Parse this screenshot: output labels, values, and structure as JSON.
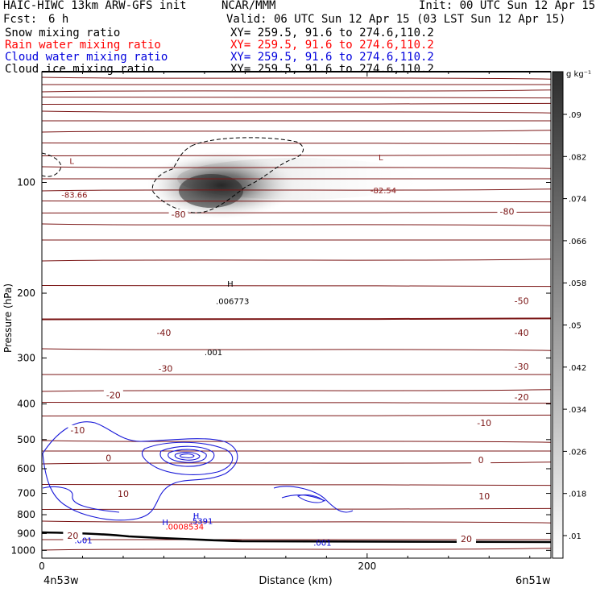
{
  "header": {
    "title": "HAIC-HIWC 13km ARW-GFS init",
    "org": "NCAR/MMM",
    "init_time": "Init: 00 UTC Sun 12 Apr 15",
    "fcst_label": "Fcst:",
    "fcst_value": "6 h",
    "valid_time": "Valid: 06 UTC Sun 12 Apr 15 (03 LST Sun 12 Apr 15)",
    "fields": [
      {
        "label": "Snow mixing ratio",
        "xy": "XY= 259.5, 91.6 to 274.6,110.2",
        "color": "#000000"
      },
      {
        "label": "Rain water mixing ratio",
        "xy": "XY= 259.5, 91.6 to 274.6,110.2",
        "color": "#ff0000"
      },
      {
        "label": "Cloud water mixing ratio",
        "xy": "XY= 259.5, 91.6 to 274.6,110.2",
        "color": "#0000dd"
      },
      {
        "label": "Cloud ice mixing ratio",
        "xy": "XY= 259.5, 91.6 to 274.6,110.2",
        "color": "#000000"
      }
    ]
  },
  "chart_data": {
    "type": "cross-section",
    "xlabel": "Distance (km)",
    "ylabel": "Pressure (hPa)",
    "x_ticks": [
      0,
      200
    ],
    "x_range": [
      0,
      313
    ],
    "y_ticks": [
      100,
      200,
      300,
      400,
      500,
      600,
      700,
      800,
      900,
      1000
    ],
    "y_range": [
      50,
      1050
    ],
    "y_scale": "log",
    "endpoint_left": "4n53w",
    "endpoint_right": "6n51w",
    "colorbar": {
      "unit": "g kg⁻¹",
      "ticks": [
        ".01",
        ".018",
        ".026",
        ".034",
        ".042",
        ".05",
        ".058",
        ".066",
        ".074",
        ".082",
        ".09"
      ],
      "colors": {
        "low": "#ffffff",
        "high": "#2d2d2d"
      }
    },
    "temperature_contour_labels": [
      {
        "text": "-80",
        "x": 84,
        "p": 122
      },
      {
        "text": "-80",
        "x": 286,
        "p": 120
      },
      {
        "text": "-50",
        "x": 295,
        "p": 210
      },
      {
        "text": "-40",
        "x": 75,
        "p": 256
      },
      {
        "text": "-40",
        "x": 295,
        "p": 256
      },
      {
        "text": "-30",
        "x": 76,
        "p": 320
      },
      {
        "text": "-30",
        "x": 295,
        "p": 316
      },
      {
        "text": "-20",
        "x": 44,
        "p": 378
      },
      {
        "text": "-20",
        "x": 295,
        "p": 383
      },
      {
        "text": "-10",
        "x": 22,
        "p": 471
      },
      {
        "text": "-10",
        "x": 272,
        "p": 450
      },
      {
        "text": "0",
        "x": 41,
        "p": 560
      },
      {
        "text": "0",
        "x": 270,
        "p": 568
      },
      {
        "text": "10",
        "x": 50,
        "p": 702
      },
      {
        "text": "10",
        "x": 272,
        "p": 712
      },
      {
        "text": "20",
        "x": 19,
        "p": 912
      },
      {
        "text": "20",
        "x": 261,
        "p": 930
      }
    ],
    "extrema": [
      {
        "text": "L",
        "x": 17,
        "p": 89,
        "color": "#8b1a1a"
      },
      {
        "text": "-83.66",
        "x": 12,
        "p": 110,
        "color": "#8b1a1a"
      },
      {
        "text": "L",
        "x": 207,
        "p": 87,
        "color": "#8b1a1a"
      },
      {
        "text": "-82.54",
        "x": 202,
        "p": 107,
        "color": "#8b1a1a"
      },
      {
        "text": "H",
        "x": 114,
        "p": 192,
        "color": "#000000"
      },
      {
        "text": ".006773",
        "x": 107,
        "p": 214,
        "color": "#000000"
      },
      {
        "text": ".001",
        "x": 100,
        "p": 295,
        "color": "#000000"
      },
      {
        "text": "H",
        "x": 93,
        "p": 820,
        "color": "#0000dd"
      },
      {
        "text": ".5391",
        "x": 91,
        "p": 848,
        "color": "#0000dd"
      },
      {
        "text": "H",
        "x": 74,
        "p": 854,
        "color": "#0000dd"
      },
      {
        "text": ".0008534",
        "x": 76,
        "p": 878,
        "color": "#ff0000"
      },
      {
        "text": ".001",
        "x": 20,
        "p": 956,
        "color": "#0000dd"
      },
      {
        "text": ".001",
        "x": 167,
        "p": 972,
        "color": "#0000dd"
      }
    ]
  }
}
